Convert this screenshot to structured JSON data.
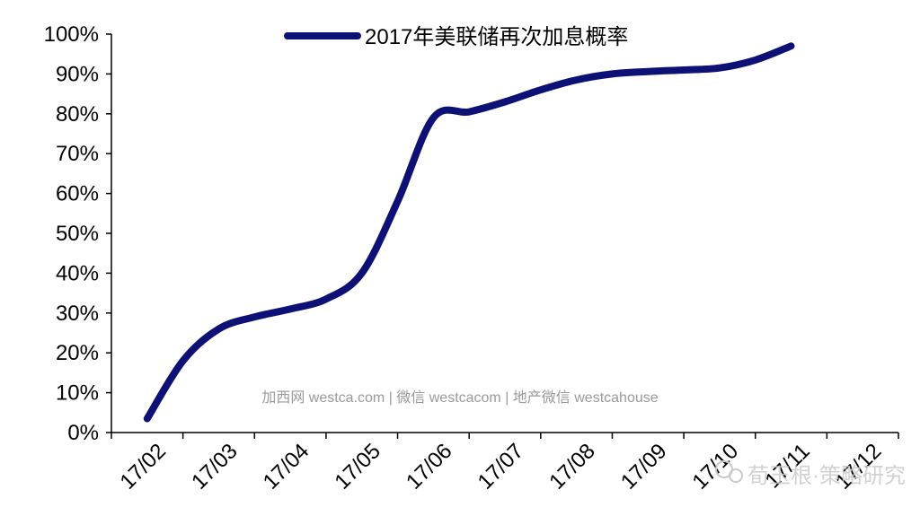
{
  "chart_data": {
    "type": "line",
    "title": "",
    "xlabel": "",
    "ylabel": "",
    "categories": [
      "17/02",
      "17/03",
      "17/04",
      "17/05",
      "17/06",
      "17/07",
      "17/08",
      "17/09",
      "17/10",
      "17/11",
      "17/12"
    ],
    "x_positions": [
      0.5,
      1.5,
      2.5,
      3.5,
      4.5,
      5.5,
      6.5,
      7.5,
      8.5,
      9.5,
      10.5
    ],
    "series": [
      {
        "name": "2017年美联储再次加息概率",
        "color": "#0d1075",
        "points": [
          [
            0.5,
            3.5
          ],
          [
            1.0,
            18
          ],
          [
            1.5,
            26
          ],
          [
            2.0,
            29
          ],
          [
            2.5,
            31
          ],
          [
            3.0,
            33.5
          ],
          [
            3.5,
            40
          ],
          [
            4.0,
            58
          ],
          [
            4.5,
            79
          ],
          [
            5.0,
            80.5
          ],
          [
            5.5,
            83
          ],
          [
            6.0,
            86
          ],
          [
            6.5,
            88.5
          ],
          [
            7.0,
            90
          ],
          [
            7.5,
            90.6
          ],
          [
            8.0,
            91
          ],
          [
            8.5,
            91.5
          ],
          [
            9.0,
            93.5
          ],
          [
            9.5,
            97
          ]
        ]
      }
    ],
    "yticks": [
      "0%",
      "10%",
      "20%",
      "30%",
      "40%",
      "50%",
      "60%",
      "70%",
      "80%",
      "90%",
      "100%"
    ],
    "ylim": [
      0,
      100
    ],
    "xlim": [
      0,
      11
    ],
    "grid": false,
    "legend_position": "top-center"
  },
  "watermark": "加西网 westca.com | 微信 westcacom | 地产微信 westcahouse",
  "brand_stamp": "荀玉根·策略研究"
}
